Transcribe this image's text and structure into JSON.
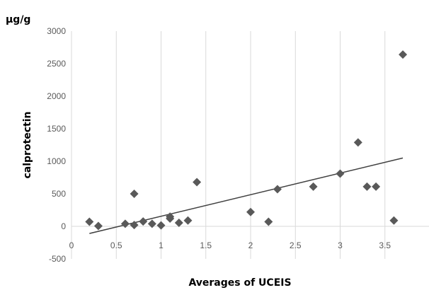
{
  "chart_data": {
    "type": "scatter",
    "title": "",
    "unit_label": "µg/g",
    "xlabel": "Averages of UCEIS",
    "ylabel": "calprotectin",
    "xlim": [
      0,
      4
    ],
    "ylim": [
      -500,
      3000
    ],
    "x_ticks": [
      "0",
      "0.5",
      "1",
      "1.5",
      "2",
      "2.5",
      "3",
      "3.5"
    ],
    "x_tick_values": [
      0,
      0.5,
      1,
      1.5,
      2,
      2.5,
      3,
      3.5
    ],
    "y_ticks": [
      "-500",
      "0",
      "500",
      "1000",
      "1500",
      "2000",
      "2500",
      "3000"
    ],
    "y_tick_values": [
      -500,
      0,
      500,
      1000,
      1500,
      2000,
      2500,
      3000
    ],
    "grid": "vertical",
    "legend": "none",
    "marker": "diamond",
    "marker_color": "#595959",
    "trendline_color": "#404040",
    "series": [
      {
        "points": [
          {
            "x": 0.2,
            "y": 70
          },
          {
            "x": 0.3,
            "y": 5
          },
          {
            "x": 0.6,
            "y": 40
          },
          {
            "x": 0.7,
            "y": 20
          },
          {
            "x": 0.7,
            "y": 500
          },
          {
            "x": 0.8,
            "y": 75
          },
          {
            "x": 0.9,
            "y": 40
          },
          {
            "x": 1.0,
            "y": 15
          },
          {
            "x": 1.1,
            "y": 120
          },
          {
            "x": 1.1,
            "y": 150
          },
          {
            "x": 1.2,
            "y": 55
          },
          {
            "x": 1.3,
            "y": 90
          },
          {
            "x": 1.4,
            "y": 680
          },
          {
            "x": 2.0,
            "y": 220
          },
          {
            "x": 2.2,
            "y": 70
          },
          {
            "x": 2.3,
            "y": 570
          },
          {
            "x": 2.7,
            "y": 610
          },
          {
            "x": 3.0,
            "y": 810
          },
          {
            "x": 3.2,
            "y": 1290
          },
          {
            "x": 3.3,
            "y": 610
          },
          {
            "x": 3.4,
            "y": 610
          },
          {
            "x": 3.6,
            "y": 90
          },
          {
            "x": 3.7,
            "y": 2640
          }
        ]
      }
    ],
    "trendline": {
      "type": "linear",
      "x": [
        0.2,
        3.7
      ],
      "y": [
        -110,
        1050
      ]
    }
  }
}
